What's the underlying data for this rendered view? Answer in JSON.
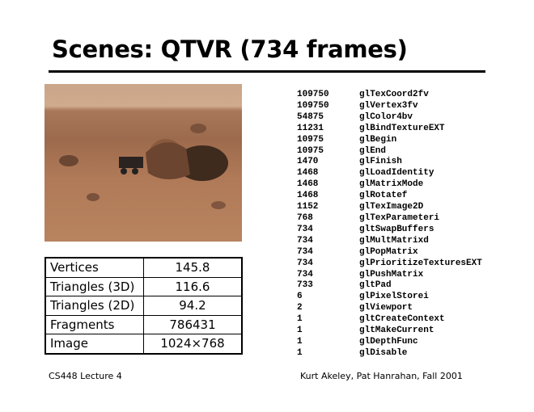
{
  "title": "Scenes: QTVR (734 frames)",
  "stats": [
    {
      "label": "Vertices",
      "value": "145.8"
    },
    {
      "label": "Triangles (3D)",
      "value": "116.6"
    },
    {
      "label": "Triangles (2D)",
      "value": "94.2"
    },
    {
      "label": "Fragments",
      "value": "786431"
    },
    {
      "label": "Image",
      "value": "1024×768"
    }
  ],
  "calls": [
    {
      "count": "109750",
      "name": "glTexCoord2fv"
    },
    {
      "count": "109750",
      "name": "glVertex3fv"
    },
    {
      "count": "54875",
      "name": "glColor4bv"
    },
    {
      "count": "11231",
      "name": "glBindTextureEXT"
    },
    {
      "count": "10975",
      "name": "glBegin"
    },
    {
      "count": "10975",
      "name": "glEnd"
    },
    {
      "count": "1470",
      "name": "glFinish"
    },
    {
      "count": "1468",
      "name": "glLoadIdentity"
    },
    {
      "count": "1468",
      "name": "glMatrixMode"
    },
    {
      "count": "1468",
      "name": "glRotatef"
    },
    {
      "count": "1152",
      "name": "glTexImage2D"
    },
    {
      "count": "768",
      "name": "glTexParameteri"
    },
    {
      "count": "734",
      "name": "gltSwapBuffers"
    },
    {
      "count": "734",
      "name": "glMultMatrixd"
    },
    {
      "count": "734",
      "name": "glPopMatrix"
    },
    {
      "count": "734",
      "name": "glPrioritizeTexturesEXT"
    },
    {
      "count": "734",
      "name": "glPushMatrix"
    },
    {
      "count": "733",
      "name": "gltPad"
    },
    {
      "count": "6",
      "name": "glPixelStorei"
    },
    {
      "count": "2",
      "name": "glViewport"
    },
    {
      "count": "1",
      "name": "gltCreateContext"
    },
    {
      "count": "1",
      "name": "gltMakeCurrent"
    },
    {
      "count": "1",
      "name": "glDepthFunc"
    },
    {
      "count": "1",
      "name": "glDisable"
    }
  ],
  "footer": {
    "left": "CS448 Lecture 4",
    "right": "Kurt Akeley, Pat Hanrahan, Fall 2001"
  }
}
